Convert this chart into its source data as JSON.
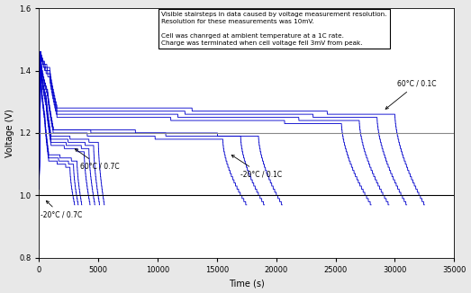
{
  "xlabel": "Time (s)",
  "ylabel": "Voltage (V)",
  "xlim": [
    0,
    35000
  ],
  "ylim": [
    0.8,
    1.6
  ],
  "yticks": [
    0.8,
    1.0,
    1.2,
    1.4,
    1.6
  ],
  "xticks": [
    0,
    5000,
    10000,
    15000,
    20000,
    25000,
    30000,
    35000
  ],
  "hline_gray": 1.2,
  "hline_black": 1.0,
  "line_color": "#0000CC",
  "hline_gray_color": "#888888",
  "annotation_box_text": "Visible stairsteps in data caused by voltage measurement resolution.\nResolution for these measurements was 10mV.\n\nCell was chanrged at ambient temperature at a 1C rate.\nCharge was terminated when cell voltage fell 3mV from peak.",
  "label_60C_01C": "60°C / 0.1C",
  "label_60C_07C": "60°C / 0.7C",
  "label_m20C_01C": "-20°C / 0.1C",
  "label_m20C_07C": "-20°C / 0.7C",
  "background_color": "#e8e8e8",
  "plot_bg": "#ffffff",
  "curves": [
    {
      "t_peak": 80,
      "v_peak": 1.46,
      "t_flat_end": 2600,
      "v_flat": 1.115,
      "t_end": 3000,
      "v_end": 0.97
    },
    {
      "t_peak": 80,
      "v_peak": 1.46,
      "t_flat_end": 2900,
      "v_flat": 1.125,
      "t_end": 3300,
      "v_end": 0.97
    },
    {
      "t_peak": 80,
      "v_peak": 1.46,
      "t_flat_end": 3200,
      "v_flat": 1.135,
      "t_end": 3600,
      "v_end": 0.97
    },
    {
      "t_peak": 100,
      "v_peak": 1.46,
      "t_flat_end": 3800,
      "v_flat": 1.165,
      "t_end": 4300,
      "v_end": 0.97
    },
    {
      "t_peak": 100,
      "v_peak": 1.46,
      "t_flat_end": 4200,
      "v_flat": 1.175,
      "t_end": 4700,
      "v_end": 0.97
    },
    {
      "t_peak": 100,
      "v_peak": 1.46,
      "t_flat_end": 4600,
      "v_flat": 1.185,
      "t_end": 5100,
      "v_end": 0.97
    },
    {
      "t_peak": 100,
      "v_peak": 1.46,
      "t_flat_end": 5000,
      "v_flat": 1.195,
      "t_end": 5500,
      "v_end": 0.97
    },
    {
      "t_peak": 120,
      "v_peak": 1.46,
      "t_flat_end": 15500,
      "v_flat": 1.2,
      "t_end": 17500,
      "v_end": 0.97
    },
    {
      "t_peak": 120,
      "v_peak": 1.46,
      "t_flat_end": 17000,
      "v_flat": 1.21,
      "t_end": 19000,
      "v_end": 0.97
    },
    {
      "t_peak": 120,
      "v_peak": 1.46,
      "t_flat_end": 18500,
      "v_flat": 1.215,
      "t_end": 20500,
      "v_end": 0.97
    },
    {
      "t_peak": 150,
      "v_peak": 1.46,
      "t_flat_end": 25500,
      "v_flat": 1.255,
      "t_end": 28000,
      "v_end": 0.97
    },
    {
      "t_peak": 150,
      "v_peak": 1.46,
      "t_flat_end": 27000,
      "v_flat": 1.265,
      "t_end": 29500,
      "v_end": 0.97
    },
    {
      "t_peak": 150,
      "v_peak": 1.46,
      "t_flat_end": 28500,
      "v_flat": 1.275,
      "t_end": 31000,
      "v_end": 0.97
    },
    {
      "t_peak": 150,
      "v_peak": 1.46,
      "t_flat_end": 30000,
      "v_flat": 1.285,
      "t_end": 32500,
      "v_end": 0.97
    }
  ]
}
